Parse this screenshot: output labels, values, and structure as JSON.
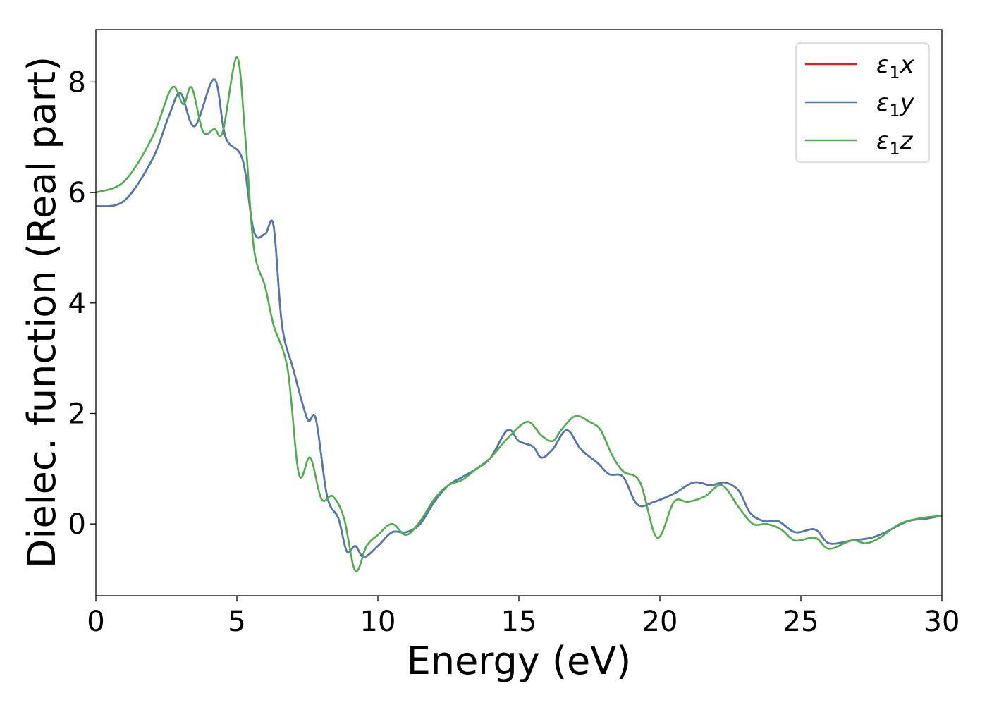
{
  "chart_data": {
    "type": "line",
    "xlabel": "Energy (eV)",
    "ylabel": "Dielec. function (Real part)",
    "xlim": [
      0,
      30
    ],
    "ylim": [
      -1.3,
      8.95
    ],
    "xticks": [
      0,
      5,
      10,
      15,
      20,
      25,
      30
    ],
    "yticks": [
      0,
      2,
      4,
      6,
      8
    ],
    "grid": false,
    "legend_position": "top-right",
    "series": [
      {
        "name": "ε₁x",
        "legend_base": "ε",
        "legend_sub": "1",
        "legend_suffix": "x",
        "color": "#e41a1c",
        "points": [
          [
            0,
            5.75
          ],
          [
            1,
            5.85
          ],
          [
            2,
            6.6
          ],
          [
            2.6,
            7.4
          ],
          [
            3.0,
            7.8
          ],
          [
            3.5,
            7.2
          ],
          [
            4.2,
            8.05
          ],
          [
            4.6,
            7.0
          ],
          [
            5.2,
            6.6
          ],
          [
            5.6,
            5.3
          ],
          [
            6.0,
            5.25
          ],
          [
            6.3,
            5.4
          ],
          [
            6.6,
            3.6
          ],
          [
            7.0,
            2.8
          ],
          [
            7.5,
            1.9
          ],
          [
            7.8,
            1.9
          ],
          [
            8.2,
            0.5
          ],
          [
            8.6,
            0.1
          ],
          [
            8.9,
            -0.5
          ],
          [
            9.2,
            -0.4
          ],
          [
            9.5,
            -0.6
          ],
          [
            10.0,
            -0.4
          ],
          [
            10.5,
            -0.15
          ],
          [
            11.0,
            -0.15
          ],
          [
            11.5,
            0.0
          ],
          [
            12.0,
            0.4
          ],
          [
            12.5,
            0.7
          ],
          [
            13.0,
            0.85
          ],
          [
            13.5,
            1.0
          ],
          [
            14.0,
            1.2
          ],
          [
            14.6,
            1.7
          ],
          [
            15.0,
            1.5
          ],
          [
            15.5,
            1.4
          ],
          [
            15.8,
            1.2
          ],
          [
            16.2,
            1.35
          ],
          [
            16.7,
            1.7
          ],
          [
            17.2,
            1.35
          ],
          [
            17.8,
            1.1
          ],
          [
            18.2,
            0.9
          ],
          [
            18.7,
            0.85
          ],
          [
            19.2,
            0.35
          ],
          [
            19.8,
            0.4
          ],
          [
            20.5,
            0.55
          ],
          [
            21.2,
            0.75
          ],
          [
            21.8,
            0.7
          ],
          [
            22.3,
            0.75
          ],
          [
            22.8,
            0.6
          ],
          [
            23.2,
            0.2
          ],
          [
            23.7,
            0.05
          ],
          [
            24.2,
            0.05
          ],
          [
            24.8,
            -0.15
          ],
          [
            25.5,
            -0.1
          ],
          [
            26.0,
            -0.35
          ],
          [
            26.8,
            -0.3
          ],
          [
            27.5,
            -0.25
          ],
          [
            28.0,
            -0.15
          ],
          [
            28.8,
            0.05
          ],
          [
            29.5,
            0.1
          ],
          [
            30,
            0.15
          ]
        ]
      },
      {
        "name": "ε₁y",
        "legend_base": "ε",
        "legend_sub": "1",
        "legend_suffix": "y",
        "color": "#4a7ab5",
        "points": [
          [
            0,
            5.75
          ],
          [
            1,
            5.85
          ],
          [
            2,
            6.6
          ],
          [
            2.6,
            7.4
          ],
          [
            3.0,
            7.8
          ],
          [
            3.5,
            7.2
          ],
          [
            4.2,
            8.05
          ],
          [
            4.6,
            7.0
          ],
          [
            5.2,
            6.6
          ],
          [
            5.6,
            5.3
          ],
          [
            6.0,
            5.25
          ],
          [
            6.3,
            5.4
          ],
          [
            6.6,
            3.6
          ],
          [
            7.0,
            2.8
          ],
          [
            7.5,
            1.9
          ],
          [
            7.8,
            1.9
          ],
          [
            8.2,
            0.5
          ],
          [
            8.6,
            0.1
          ],
          [
            8.9,
            -0.5
          ],
          [
            9.2,
            -0.4
          ],
          [
            9.5,
            -0.6
          ],
          [
            10.0,
            -0.4
          ],
          [
            10.5,
            -0.15
          ],
          [
            11.0,
            -0.15
          ],
          [
            11.5,
            0.0
          ],
          [
            12.0,
            0.4
          ],
          [
            12.5,
            0.7
          ],
          [
            13.0,
            0.85
          ],
          [
            13.5,
            1.0
          ],
          [
            14.0,
            1.2
          ],
          [
            14.6,
            1.7
          ],
          [
            15.0,
            1.5
          ],
          [
            15.5,
            1.4
          ],
          [
            15.8,
            1.2
          ],
          [
            16.2,
            1.35
          ],
          [
            16.7,
            1.7
          ],
          [
            17.2,
            1.35
          ],
          [
            17.8,
            1.1
          ],
          [
            18.2,
            0.9
          ],
          [
            18.7,
            0.85
          ],
          [
            19.2,
            0.35
          ],
          [
            19.8,
            0.4
          ],
          [
            20.5,
            0.55
          ],
          [
            21.2,
            0.75
          ],
          [
            21.8,
            0.7
          ],
          [
            22.3,
            0.75
          ],
          [
            22.8,
            0.6
          ],
          [
            23.2,
            0.2
          ],
          [
            23.7,
            0.05
          ],
          [
            24.2,
            0.05
          ],
          [
            24.8,
            -0.15
          ],
          [
            25.5,
            -0.1
          ],
          [
            26.0,
            -0.35
          ],
          [
            26.8,
            -0.3
          ],
          [
            27.5,
            -0.25
          ],
          [
            28.0,
            -0.15
          ],
          [
            28.8,
            0.05
          ],
          [
            29.5,
            0.1
          ],
          [
            30,
            0.15
          ]
        ]
      },
      {
        "name": "ε₁z",
        "legend_base": "ε",
        "legend_sub": "1",
        "legend_suffix": "z",
        "color": "#4daf4a",
        "points": [
          [
            0,
            6.0
          ],
          [
            1,
            6.2
          ],
          [
            2,
            7.0
          ],
          [
            2.7,
            7.9
          ],
          [
            3.1,
            7.6
          ],
          [
            3.4,
            7.9
          ],
          [
            3.8,
            7.1
          ],
          [
            4.2,
            7.15
          ],
          [
            4.5,
            7.1
          ],
          [
            5.0,
            8.45
          ],
          [
            5.3,
            7.0
          ],
          [
            5.6,
            5.0
          ],
          [
            6.0,
            4.3
          ],
          [
            6.3,
            3.6
          ],
          [
            6.8,
            2.8
          ],
          [
            7.2,
            0.9
          ],
          [
            7.6,
            1.2
          ],
          [
            8.0,
            0.45
          ],
          [
            8.4,
            0.5
          ],
          [
            8.8,
            0.1
          ],
          [
            9.2,
            -0.85
          ],
          [
            9.6,
            -0.4
          ],
          [
            10.0,
            -0.2
          ],
          [
            10.5,
            0.0
          ],
          [
            11.0,
            -0.2
          ],
          [
            11.5,
            0.05
          ],
          [
            12.0,
            0.45
          ],
          [
            12.5,
            0.7
          ],
          [
            13.0,
            0.8
          ],
          [
            13.5,
            1.0
          ],
          [
            14.0,
            1.2
          ],
          [
            14.6,
            1.55
          ],
          [
            15.3,
            1.85
          ],
          [
            15.8,
            1.6
          ],
          [
            16.2,
            1.5
          ],
          [
            16.5,
            1.7
          ],
          [
            17.0,
            1.95
          ],
          [
            17.5,
            1.85
          ],
          [
            17.9,
            1.7
          ],
          [
            18.3,
            1.25
          ],
          [
            18.7,
            0.95
          ],
          [
            19.3,
            0.75
          ],
          [
            19.9,
            -0.25
          ],
          [
            20.5,
            0.4
          ],
          [
            21.0,
            0.4
          ],
          [
            21.6,
            0.5
          ],
          [
            22.2,
            0.7
          ],
          [
            22.8,
            0.3
          ],
          [
            23.3,
            0.0
          ],
          [
            23.8,
            0.0
          ],
          [
            24.3,
            -0.1
          ],
          [
            24.8,
            -0.3
          ],
          [
            25.5,
            -0.25
          ],
          [
            26.0,
            -0.45
          ],
          [
            26.8,
            -0.3
          ],
          [
            27.3,
            -0.35
          ],
          [
            27.8,
            -0.25
          ],
          [
            28.5,
            0.0
          ],
          [
            29.2,
            0.1
          ],
          [
            30,
            0.15
          ]
        ]
      }
    ]
  }
}
